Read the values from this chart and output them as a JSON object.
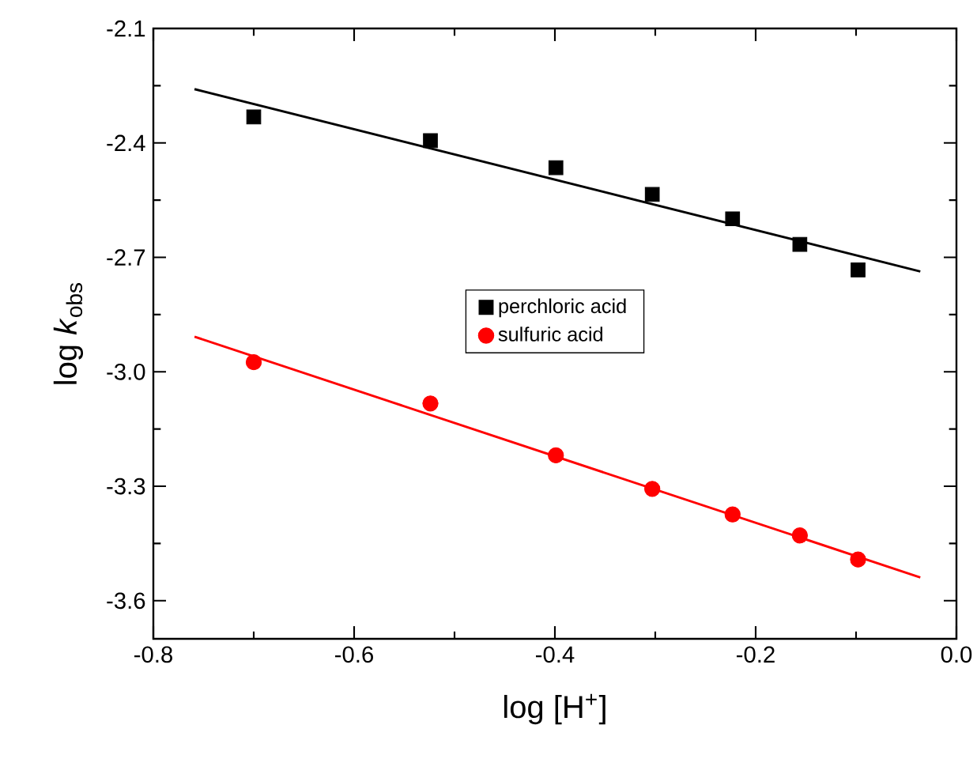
{
  "chart_data": {
    "type": "scatter",
    "xlabel": "log [H$^{+}$]",
    "ylabel": "log *k*$_{obs}$",
    "xlim": [
      -0.8,
      0.0
    ],
    "ylim": [
      -3.7,
      -2.1
    ],
    "xticks": [
      -0.8,
      -0.6,
      -0.4,
      -0.2,
      {
        "value": 0,
        "label": "0.0"
      }
    ],
    "yticks": [
      -2.1,
      -2.4,
      -2.7,
      {
        "value": -3.0,
        "label": "-3.0"
      },
      -3.3,
      -3.6
    ],
    "legend": "center",
    "grid": false,
    "series": [
      {
        "name": "perchloric acid",
        "color": "#000000",
        "marker": "square",
        "x": [
          -0.7,
          -0.524,
          -0.399,
          -0.303,
          -0.223,
          -0.156,
          -0.098
        ],
        "values": [
          -2.332,
          -2.394,
          -2.465,
          -2.535,
          -2.599,
          -2.666,
          -2.733
        ]
      },
      {
        "name": "sulfuric acid",
        "color": "#ff0000",
        "marker": "circle",
        "x": [
          -0.7,
          -0.524,
          -0.399,
          -0.303,
          -0.223,
          -0.156,
          -0.098
        ],
        "values": [
          -2.975,
          -3.083,
          -3.219,
          -3.307,
          -3.374,
          -3.429,
          -3.492
        ]
      },
      {
        "type": "line",
        "color": "#000000",
        "marker": "none",
        "x": [
          -0.759,
          -0.036
        ],
        "values": [
          -2.259,
          -2.737
        ]
      },
      {
        "type": "line",
        "color": "#ff0000",
        "marker": "none",
        "x": [
          -0.759,
          -0.036
        ],
        "values": [
          -2.908,
          -3.539
        ]
      }
    ]
  }
}
